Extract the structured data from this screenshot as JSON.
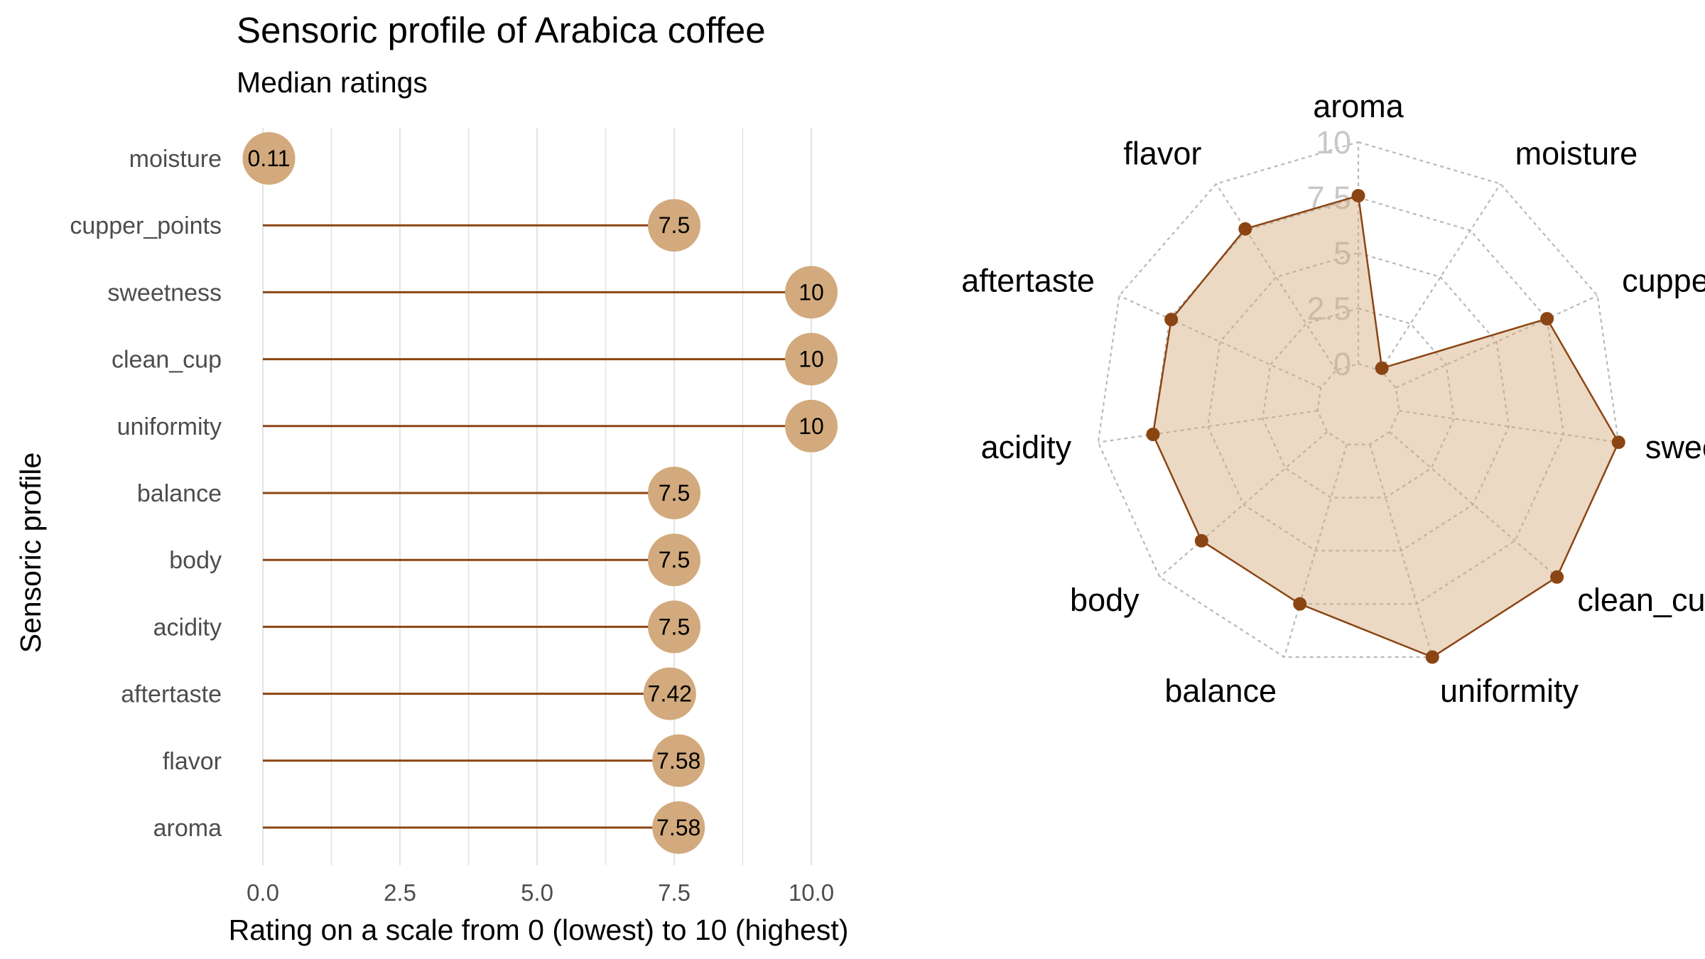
{
  "colors": {
    "segment": "#8b4513",
    "dot": "#d2aa7d",
    "radar_line": "#8b4513",
    "radar_point": "#8b4513",
    "radar_fill": "#d2aa7d",
    "grid": "#e3e3e3",
    "radar_grid": "#b8b8b8"
  },
  "chart_data": [
    {
      "type": "lollipop",
      "title": "Sensoric profile of Arabica coffee",
      "subtitle": "Median ratings",
      "xlabel": "Rating on a scale from 0 (lowest) to 10 (highest)",
      "ylabel": "Sensoric profile",
      "xlim": [
        0,
        10
      ],
      "xticks": [
        "0.0",
        "2.5",
        "5.0",
        "7.5",
        "10.0"
      ],
      "xtick_values": [
        0,
        2.5,
        5,
        7.5,
        10
      ],
      "grid": true,
      "categories": [
        "moisture",
        "cupper_points",
        "sweetness",
        "clean_cup",
        "uniformity",
        "balance",
        "body",
        "acidity",
        "aftertaste",
        "flavor",
        "aroma"
      ],
      "values": [
        0.11,
        7.5,
        10,
        10,
        10,
        7.5,
        7.5,
        7.5,
        7.42,
        7.58,
        7.58
      ],
      "value_labels": [
        "0.11",
        "7.5",
        "10",
        "10",
        "10",
        "7.5",
        "7.5",
        "7.5",
        "7.42",
        "7.58",
        "7.58"
      ]
    },
    {
      "type": "radar",
      "rlim": [
        0,
        10
      ],
      "rtick_labels": [
        "0",
        "2.5",
        "5",
        "7.5",
        "10"
      ],
      "rtick_values": [
        0,
        2.5,
        5,
        7.5,
        10
      ],
      "axes": [
        "aroma",
        "moisture",
        "cupper_points",
        "sweetness",
        "clean_cup",
        "uniformity",
        "balance",
        "body",
        "acidity",
        "aftertaste",
        "flavor"
      ],
      "values": [
        7.58,
        0.11,
        7.5,
        10,
        10,
        10,
        7.5,
        7.5,
        7.5,
        7.42,
        7.58
      ]
    }
  ]
}
